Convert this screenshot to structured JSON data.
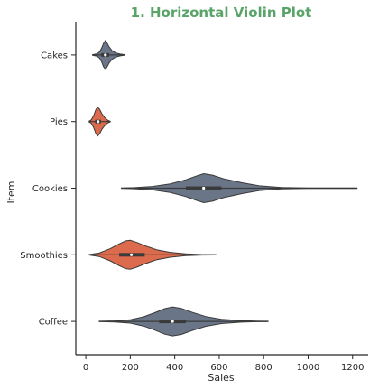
{
  "chart_data": {
    "type": "violin",
    "orientation": "horizontal",
    "title": "1. Horizontal Violin Plot",
    "title_color": "#5aa469",
    "xlabel": "Sales",
    "ylabel": "Item",
    "xlim": [
      -45,
      1270
    ],
    "xticks": [
      0,
      200,
      400,
      600,
      800,
      1000,
      1200
    ],
    "xtick_labels": [
      "0",
      "200",
      "400",
      "600",
      "800",
      "1000",
      "1200"
    ],
    "grid": false,
    "categories": [
      "Cakes",
      "Pies",
      "Cookies",
      "Smoothies",
      "Coffee"
    ],
    "series": [
      {
        "name": "Cakes",
        "color": "#6a7688",
        "min": 30,
        "max": 175,
        "q1": 70,
        "median": 88,
        "q3": 105,
        "density": [
          [
            30,
            0.02
          ],
          [
            50,
            0.08
          ],
          [
            62,
            0.22
          ],
          [
            72,
            0.5
          ],
          [
            80,
            0.82
          ],
          [
            88,
            1.0
          ],
          [
            96,
            0.82
          ],
          [
            105,
            0.55
          ],
          [
            118,
            0.3
          ],
          [
            135,
            0.14
          ],
          [
            155,
            0.06
          ],
          [
            175,
            0.02
          ]
        ]
      },
      {
        "name": "Pies",
        "color": "#db6b4c",
        "min": 15,
        "max": 110,
        "q1": 42,
        "median": 55,
        "q3": 68,
        "density": [
          [
            15,
            0.03
          ],
          [
            25,
            0.12
          ],
          [
            35,
            0.4
          ],
          [
            45,
            0.82
          ],
          [
            53,
            1.0
          ],
          [
            62,
            0.85
          ],
          [
            72,
            0.55
          ],
          [
            85,
            0.28
          ],
          [
            98,
            0.1
          ],
          [
            110,
            0.02
          ]
        ]
      },
      {
        "name": "Cookies",
        "color": "#6a7688",
        "min": 160,
        "max": 1220,
        "q1": 450,
        "median": 530,
        "q3": 610,
        "density": [
          [
            160,
            0.01
          ],
          [
            220,
            0.04
          ],
          [
            300,
            0.12
          ],
          [
            380,
            0.3
          ],
          [
            450,
            0.58
          ],
          [
            500,
            0.85
          ],
          [
            530,
            1.0
          ],
          [
            570,
            0.9
          ],
          [
            620,
            0.65
          ],
          [
            700,
            0.38
          ],
          [
            780,
            0.16
          ],
          [
            880,
            0.05
          ],
          [
            1000,
            0.02
          ],
          [
            1100,
            0.01
          ],
          [
            1220,
            0.01
          ]
        ]
      },
      {
        "name": "Smoothies",
        "color": "#db6b4c",
        "min": 15,
        "max": 585,
        "q1": 150,
        "median": 205,
        "q3": 265,
        "density": [
          [
            15,
            0.02
          ],
          [
            60,
            0.12
          ],
          [
            110,
            0.42
          ],
          [
            150,
            0.75
          ],
          [
            180,
            0.96
          ],
          [
            200,
            1.0
          ],
          [
            230,
            0.85
          ],
          [
            270,
            0.6
          ],
          [
            320,
            0.34
          ],
          [
            380,
            0.17
          ],
          [
            450,
            0.06
          ],
          [
            520,
            0.02
          ],
          [
            585,
            0.01
          ]
        ]
      },
      {
        "name": "Coffee",
        "color": "#6a7688",
        "min": 60,
        "max": 820,
        "q1": 330,
        "median": 390,
        "q3": 450,
        "density": [
          [
            60,
            0.01
          ],
          [
            130,
            0.04
          ],
          [
            200,
            0.12
          ],
          [
            260,
            0.32
          ],
          [
            310,
            0.6
          ],
          [
            355,
            0.88
          ],
          [
            390,
            1.0
          ],
          [
            430,
            0.9
          ],
          [
            480,
            0.62
          ],
          [
            540,
            0.34
          ],
          [
            610,
            0.15
          ],
          [
            700,
            0.05
          ],
          [
            770,
            0.02
          ],
          [
            820,
            0.01
          ]
        ]
      }
    ]
  }
}
